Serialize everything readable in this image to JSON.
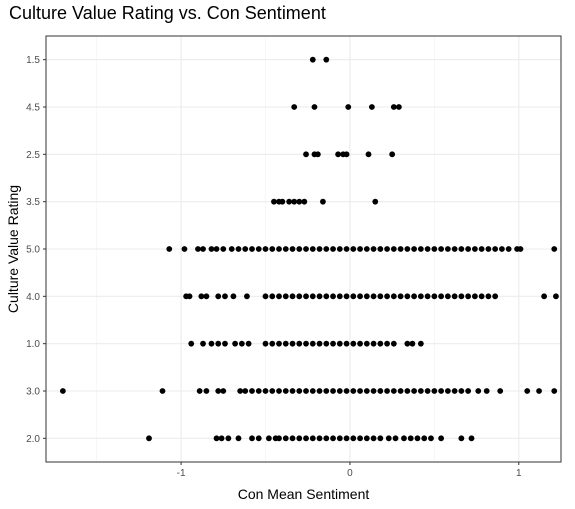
{
  "chart_data": {
    "type": "scatter",
    "title": "Culture Value Rating vs. Con Sentiment",
    "xlabel": "Con Mean Sentiment",
    "ylabel": "Culture Value Rating",
    "xlim": [
      -1.8,
      1.25
    ],
    "x_ticks": [
      -1,
      0,
      1
    ],
    "x_tick_labels": [
      "-1",
      "0",
      "1"
    ],
    "categories": [
      "2.0",
      "3.0",
      "1.0",
      "4.0",
      "5.0",
      "3.5",
      "2.5",
      "4.5",
      "1.5"
    ],
    "grid": true,
    "theme": "black-and-white",
    "point_color": "#000000",
    "series": [
      {
        "points": [
          {
            "y": "1.5",
            "x": [
              -0.22,
              -0.14
            ]
          },
          {
            "y": "4.5",
            "x": [
              -0.33,
              -0.21,
              -0.01,
              0.13,
              0.26,
              0.29
            ]
          },
          {
            "y": "2.5",
            "x": [
              -0.26,
              -0.21,
              -0.19,
              -0.07,
              -0.04,
              -0.02,
              0.11,
              0.25
            ]
          },
          {
            "y": "3.5",
            "x": [
              -0.45,
              -0.42,
              -0.4,
              -0.36,
              -0.33,
              -0.3,
              -0.27,
              -0.16,
              0.15
            ]
          },
          {
            "y": "5.0",
            "x": [
              -1.07,
              -0.98,
              -0.9,
              -0.87,
              -0.82,
              -0.79,
              -0.75,
              -0.7,
              -0.66,
              -0.62,
              -0.58,
              -0.54,
              -0.5,
              -0.46,
              -0.42,
              -0.38,
              -0.34,
              -0.3,
              -0.26,
              -0.22,
              -0.18,
              -0.14,
              -0.1,
              -0.06,
              -0.02,
              0.02,
              0.06,
              0.1,
              0.14,
              0.18,
              0.22,
              0.26,
              0.3,
              0.34,
              0.38,
              0.42,
              0.46,
              0.5,
              0.54,
              0.58,
              0.62,
              0.66,
              0.7,
              0.74,
              0.78,
              0.82,
              0.86,
              0.9,
              0.94,
              0.99,
              1.01,
              1.21
            ]
          },
          {
            "y": "4.0",
            "x": [
              -0.97,
              -0.95,
              -0.88,
              -0.85,
              -0.78,
              -0.74,
              -0.69,
              -0.61,
              -0.5,
              -0.46,
              -0.42,
              -0.38,
              -0.34,
              -0.3,
              -0.26,
              -0.22,
              -0.18,
              -0.14,
              -0.1,
              -0.06,
              -0.02,
              0.02,
              0.06,
              0.1,
              0.14,
              0.18,
              0.22,
              0.26,
              0.3,
              0.34,
              0.38,
              0.42,
              0.46,
              0.5,
              0.54,
              0.58,
              0.62,
              0.66,
              0.7,
              0.74,
              0.78,
              0.82,
              0.86,
              1.15,
              1.22
            ]
          },
          {
            "y": "1.0",
            "x": [
              -0.94,
              -0.87,
              -0.82,
              -0.78,
              -0.74,
              -0.68,
              -0.64,
              -0.6,
              -0.5,
              -0.46,
              -0.42,
              -0.38,
              -0.34,
              -0.3,
              -0.26,
              -0.22,
              -0.18,
              -0.14,
              -0.1,
              -0.06,
              -0.02,
              0.02,
              0.06,
              0.1,
              0.14,
              0.18,
              0.22,
              0.26,
              0.34,
              0.37,
              0.42
            ]
          },
          {
            "y": "3.0",
            "x": [
              -1.7,
              -1.11,
              -0.89,
              -0.85,
              -0.78,
              -0.75,
              -0.65,
              -0.62,
              -0.58,
              -0.54,
              -0.5,
              -0.46,
              -0.42,
              -0.38,
              -0.34,
              -0.3,
              -0.26,
              -0.22,
              -0.18,
              -0.14,
              -0.1,
              -0.06,
              -0.02,
              0.02,
              0.06,
              0.1,
              0.14,
              0.18,
              0.22,
              0.26,
              0.3,
              0.34,
              0.38,
              0.42,
              0.46,
              0.5,
              0.54,
              0.58,
              0.62,
              0.66,
              0.7,
              0.76,
              0.81,
              0.89,
              1.05,
              1.12,
              1.21
            ]
          },
          {
            "y": "2.0",
            "x": [
              -1.19,
              -0.79,
              -0.76,
              -0.72,
              -0.66,
              -0.58,
              -0.54,
              -0.48,
              -0.44,
              -0.42,
              -0.38,
              -0.34,
              -0.3,
              -0.26,
              -0.22,
              -0.18,
              -0.14,
              -0.1,
              -0.06,
              -0.02,
              0.02,
              0.06,
              0.1,
              0.14,
              0.18,
              0.23,
              0.27,
              0.32,
              0.36,
              0.4,
              0.44,
              0.48,
              0.54,
              0.66,
              0.72
            ]
          }
        ]
      }
    ]
  }
}
